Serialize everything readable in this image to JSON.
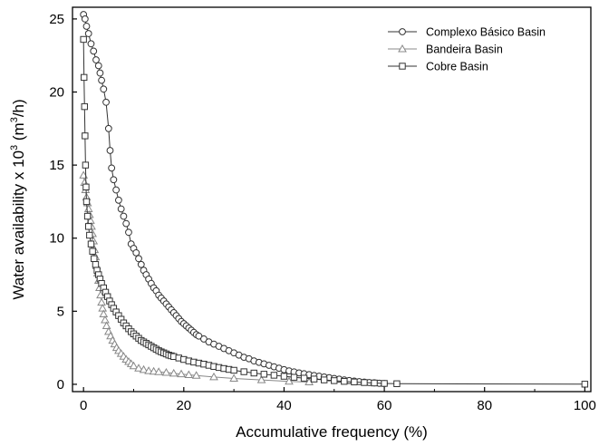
{
  "chart_data": {
    "type": "line",
    "xlabel": "Accumulative frequency (%)",
    "ylabel_prefix": "Water availability x 10",
    "ylabel_exp": "3",
    "ylabel_mid": " (m",
    "ylabel_unit_exp": "3",
    "ylabel_suffix": "/h)",
    "xlim": [
      0,
      100
    ],
    "ylim": [
      0,
      25.8
    ],
    "xticks": [
      0,
      20,
      40,
      60,
      80,
      100
    ],
    "yticks": [
      0,
      5,
      10,
      15,
      20,
      25
    ],
    "xtick_labels": [
      "0",
      "20",
      "40",
      "60",
      "80",
      "100"
    ],
    "ytick_labels": [
      "0",
      "5",
      "10",
      "15",
      "20",
      "25"
    ],
    "grid": false,
    "legend_position": "top-right",
    "series": [
      {
        "name": "Complexo Básico Basin",
        "marker": "circle",
        "color": "#333333",
        "x": [
          0,
          0.3,
          0.6,
          1,
          1.5,
          2,
          2.5,
          3,
          3.3,
          3.6,
          4,
          4.5,
          5,
          5.3,
          5.6,
          6,
          6.5,
          7,
          7.5,
          8,
          8.5,
          9,
          9.5,
          10,
          10.5,
          11,
          11.5,
          12,
          12.5,
          13,
          13.5,
          14,
          14.5,
          15,
          15.5,
          16,
          16.5,
          17,
          17.5,
          18,
          18.5,
          19,
          19.5,
          20,
          20.5,
          21,
          21.5,
          22,
          22.5,
          23,
          24,
          25,
          26,
          27,
          28,
          29,
          30,
          31,
          32,
          33,
          34,
          35,
          36,
          37,
          38,
          39,
          40,
          41,
          42,
          43,
          44,
          45,
          46,
          47,
          48,
          49,
          50,
          51,
          52,
          53,
          54,
          55,
          56,
          57,
          58,
          59,
          60
        ],
        "y": [
          25.3,
          25,
          24.5,
          24,
          23.3,
          22.8,
          22.2,
          21.8,
          21.3,
          20.8,
          20.2,
          19.3,
          17.5,
          16,
          14.8,
          14,
          13.3,
          12.6,
          12.0,
          11.5,
          11.0,
          10.4,
          9.6,
          9.3,
          9.0,
          8.6,
          8.2,
          7.8,
          7.5,
          7.2,
          6.9,
          6.6,
          6.4,
          6.1,
          5.9,
          5.7,
          5.5,
          5.3,
          5.1,
          4.9,
          4.7,
          4.5,
          4.3,
          4.15,
          4.0,
          3.85,
          3.7,
          3.55,
          3.4,
          3.3,
          3.1,
          2.9,
          2.75,
          2.6,
          2.45,
          2.3,
          2.15,
          2.0,
          1.85,
          1.75,
          1.6,
          1.5,
          1.4,
          1.3,
          1.2,
          1.1,
          1.0,
          0.92,
          0.85,
          0.78,
          0.72,
          0.66,
          0.6,
          0.55,
          0.5,
          0.45,
          0.4,
          0.35,
          0.3,
          0.26,
          0.22,
          0.18,
          0.15,
          0.12,
          0.1,
          0.07,
          0.05
        ]
      },
      {
        "name": "Bandeira Basin",
        "marker": "triangle",
        "color": "#888888",
        "x": [
          0,
          0.2,
          0.4,
          0.6,
          0.8,
          1,
          1.2,
          1.4,
          1.6,
          1.8,
          2,
          2.2,
          2.4,
          2.6,
          2.8,
          3,
          3.2,
          3.4,
          3.6,
          3.8,
          4,
          4.3,
          4.6,
          5,
          5.4,
          5.8,
          6.2,
          6.6,
          7,
          7.5,
          8,
          8.5,
          9,
          9.5,
          10,
          11,
          12,
          13,
          14,
          15,
          16.5,
          18,
          19.5,
          21,
          22.5,
          26,
          30,
          35.5,
          41,
          45
        ],
        "y": [
          14.3,
          13.8,
          13.3,
          12.8,
          12.4,
          12.0,
          11.6,
          11.2,
          10.8,
          10.3,
          9.8,
          9.2,
          8.7,
          8.1,
          7.6,
          7.1,
          6.6,
          6.1,
          5.6,
          5.2,
          4.8,
          4.4,
          4.0,
          3.6,
          3.3,
          3.0,
          2.75,
          2.5,
          2.3,
          2.1,
          1.9,
          1.7,
          1.55,
          1.4,
          1.25,
          1.1,
          1.0,
          0.92,
          0.88,
          0.85,
          0.8,
          0.75,
          0.7,
          0.65,
          0.6,
          0.5,
          0.4,
          0.3,
          0.2,
          0.15
        ]
      },
      {
        "name": "Cobre Basin",
        "marker": "square",
        "color": "#333333",
        "x": [
          0,
          0.1,
          0.2,
          0.3,
          0.4,
          0.5,
          0.6,
          0.8,
          1,
          1.2,
          1.5,
          1.8,
          2.1,
          2.4,
          2.7,
          3,
          3.3,
          3.6,
          4,
          4.4,
          4.8,
          5.2,
          5.6,
          6,
          6.5,
          7,
          7.5,
          8,
          8.5,
          9,
          9.5,
          10,
          10.5,
          11,
          11.5,
          12,
          12.5,
          13,
          13.5,
          14,
          14.5,
          15,
          15.5,
          16,
          16.5,
          17,
          17.5,
          18,
          19,
          20,
          21,
          22,
          23,
          24,
          25,
          26,
          27,
          28,
          29,
          30,
          32,
          34,
          36,
          38,
          40,
          42,
          44,
          46,
          48,
          50,
          52,
          54,
          56,
          58,
          60,
          62.5,
          100
        ],
        "y": [
          23.6,
          21,
          19,
          17,
          15,
          13.5,
          12.5,
          11.5,
          10.8,
          10.2,
          9.6,
          9.1,
          8.6,
          8.2,
          7.8,
          7.5,
          7.2,
          6.9,
          6.6,
          6.3,
          6.0,
          5.7,
          5.45,
          5.2,
          4.95,
          4.7,
          4.45,
          4.2,
          4.0,
          3.8,
          3.6,
          3.45,
          3.3,
          3.15,
          3.0,
          2.9,
          2.8,
          2.7,
          2.6,
          2.5,
          2.4,
          2.3,
          2.22,
          2.15,
          2.08,
          2.0,
          1.95,
          1.9,
          1.8,
          1.7,
          1.6,
          1.52,
          1.45,
          1.38,
          1.3,
          1.22,
          1.15,
          1.08,
          1.02,
          0.96,
          0.86,
          0.77,
          0.69,
          0.62,
          0.55,
          0.48,
          0.42,
          0.36,
          0.3,
          0.25,
          0.2,
          0.16,
          0.12,
          0.09,
          0.06,
          0.04,
          0.01
        ]
      }
    ]
  }
}
